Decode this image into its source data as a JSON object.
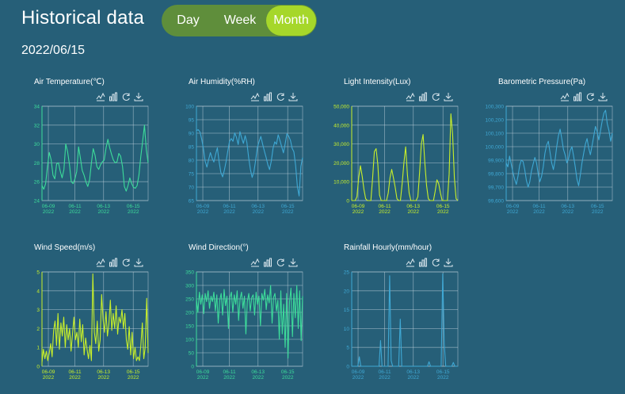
{
  "header": {
    "title": "Historical data",
    "date": "2022/06/15"
  },
  "range_toggle": {
    "options": [
      {
        "label": "Day",
        "active": false
      },
      {
        "label": "Week",
        "active": false
      },
      {
        "label": "Month",
        "active": true
      }
    ]
  },
  "colors": {
    "background": "#265f78",
    "green_line": "#3ddc9a",
    "yellow_line": "#c8ef2a",
    "blue_line": "#3fa8d4",
    "toggle_bg": "#5f8e3b",
    "toggle_active": "#a6d72a"
  },
  "toolbox_icons": [
    "line-chart-icon",
    "bar-chart-icon",
    "restore-icon",
    "download-icon"
  ],
  "chart_data": [
    {
      "id": "air-temperature",
      "type": "line",
      "title": "Air Temperature(℃)",
      "color": "#3ddc9a",
      "ylim": [
        24,
        34
      ],
      "yticks": [
        "24",
        "26",
        "28",
        "30",
        "32",
        "34"
      ],
      "xticks": [
        "06-09\n2022",
        "06-11\n2022",
        "06-13\n2022",
        "06-15\n2022"
      ],
      "y": [
        25.6,
        25.2,
        25.8,
        27.6,
        29.1,
        28.3,
        26.7,
        26.3,
        27.9,
        28.0,
        27.1,
        26.4,
        27.3,
        30.0,
        29.2,
        27.8,
        26.0,
        25.8,
        26.3,
        27.1,
        29.7,
        28.5,
        27.2,
        26.7,
        26.0,
        25.5,
        26.2,
        28.0,
        29.5,
        28.8,
        27.6,
        27.3,
        27.8,
        28.1,
        28.3,
        29.6,
        30.5,
        29.6,
        28.9,
        28.3,
        28.0,
        28.1,
        29.0,
        28.7,
        27.6,
        25.5,
        25.0,
        25.6,
        26.4,
        25.8,
        25.4,
        25.3,
        25.6,
        26.7,
        28.7,
        30.3,
        32.0,
        29.4,
        28.0
      ]
    },
    {
      "id": "air-humidity",
      "type": "line",
      "title": "Air Humidity(%RH)",
      "color": "#3fa8d4",
      "ylim": [
        65,
        100
      ],
      "yticks": [
        "65",
        "70",
        "75",
        "80",
        "85",
        "90",
        "95",
        "100"
      ],
      "xticks": [
        "06-09\n2022",
        "06-11\n2022",
        "06-13\n2022",
        "06-15\n2022"
      ],
      "y": [
        91.0,
        91.3,
        90.5,
        87.8,
        84.3,
        79.6,
        77.4,
        80.2,
        82.8,
        80.7,
        79.3,
        82.2,
        84.6,
        79.4,
        75.4,
        73.8,
        76.1,
        79.3,
        83.2,
        86.9,
        88.0,
        87.0,
        90.1,
        88.5,
        85.8,
        90.6,
        88.2,
        86.2,
        89.1,
        86.5,
        80.9,
        76.6,
        73.6,
        75.6,
        79.9,
        84.7,
        86.9,
        88.8,
        86.0,
        83.4,
        81.1,
        78.3,
        76.5,
        79.7,
        84.4,
        86.8,
        85.9,
        89.4,
        87.3,
        85.0,
        82.7,
        86.1,
        89.8,
        88.9,
        87.4,
        84.4,
        83.1,
        78.0,
        70.2,
        66.7,
        77.7,
        80.9
      ]
    },
    {
      "id": "light-intensity",
      "type": "line",
      "title": "Light Intensity(Lux)",
      "color": "#c8ef2a",
      "ylim": [
        0,
        50000
      ],
      "yticks": [
        "0",
        "10,000",
        "20,000",
        "30,000",
        "40,000",
        "50,000"
      ],
      "xticks": [
        "06-09\n2022",
        "06-11\n2022",
        "06-13\n2022",
        "06-15\n2022"
      ],
      "y": [
        0,
        0,
        0,
        2000,
        12000,
        18500,
        13000,
        6000,
        1000,
        0,
        0,
        0,
        12000,
        26000,
        27500,
        19000,
        3000,
        0,
        0,
        0,
        0,
        4000,
        12000,
        16500,
        12000,
        7000,
        1000,
        0,
        0,
        9000,
        20000,
        28500,
        14000,
        4000,
        0,
        0,
        0,
        0,
        2000,
        15000,
        30000,
        35000,
        20000,
        8000,
        1000,
        0,
        0,
        0,
        5000,
        11000,
        9000,
        4000,
        0,
        0,
        0,
        0,
        14000,
        46000,
        35000,
        12000,
        1000,
        0
      ]
    },
    {
      "id": "barometric-pressure",
      "type": "line",
      "title": "Barometric Pressure(Pa)",
      "color": "#3fa8d4",
      "ylim": [
        99600,
        100300
      ],
      "yticks": [
        "99,600",
        "99,700",
        "99,800",
        "99,900",
        "100,000",
        "100,100",
        "100,200",
        "100,300"
      ],
      "xticks": [
        "06-09\n2022",
        "06-11\n2022",
        "06-13\n2022",
        "06-15\n2022"
      ],
      "y": [
        99880,
        99850,
        99930,
        99870,
        99810,
        99760,
        99720,
        99780,
        99860,
        99900,
        99890,
        99830,
        99750,
        99700,
        99740,
        99820,
        99870,
        99920,
        99880,
        99800,
        99740,
        99780,
        99850,
        99950,
        100010,
        100040,
        99960,
        99880,
        99830,
        99900,
        100000,
        100080,
        100130,
        100060,
        99980,
        99940,
        99880,
        99910,
        99970,
        100000,
        99930,
        99850,
        99760,
        99710,
        99790,
        99880,
        99950,
        100020,
        100060,
        99990,
        99940,
        100010,
        100080,
        100150,
        100110,
        100050,
        100120,
        100190,
        100250,
        100270,
        100170,
        100120,
        100040,
        100100
      ]
    },
    {
      "id": "wind-speed",
      "type": "line",
      "title": "Wind Speed(m/s)",
      "color": "#c8ef2a",
      "ylim": [
        0,
        5
      ],
      "yticks": [
        "0",
        "1",
        "2",
        "3",
        "4",
        "5"
      ],
      "xticks": [
        "06-09\n2022",
        "06-11\n2022",
        "06-13\n2022",
        "06-15\n2022"
      ],
      "y": [
        0.2,
        0.9,
        0.4,
        0.8,
        0.3,
        0.7,
        1.2,
        0.5,
        1.9,
        2.4,
        1.1,
        2.8,
        0.9,
        2.3,
        1.6,
        2.6,
        1.0,
        2.2,
        1.4,
        2.0,
        0.8,
        1.7,
        2.6,
        1.4,
        1.8,
        1.0,
        2.5,
        1.3,
        2.2,
        0.6,
        1.5,
        0.9,
        0.4,
        1.1,
        0.3,
        4.9,
        1.8,
        1.2,
        2.4,
        0.8,
        1.4,
        3.8,
        2.5,
        1.8,
        2.9,
        1.6,
        2.2,
        3.5,
        1.9,
        2.8,
        2.0,
        3.2,
        1.7,
        2.6,
        2.3,
        3.0,
        2.0,
        2.8,
        1.4,
        0.9,
        2.1,
        0.6,
        1.8,
        0.4,
        1.0,
        0.3,
        0.5,
        0.3,
        1.1,
        2.3,
        0.4,
        1.0,
        3.6,
        0.7
      ]
    },
    {
      "id": "wind-direction",
      "type": "line",
      "title": "Wind Direction(°)",
      "color": "#3ddc9a",
      "ylim": [
        0,
        350
      ],
      "yticks": [
        "0",
        "50",
        "100",
        "150",
        "200",
        "250",
        "300",
        "350"
      ],
      "xticks": [
        "06-09\n2022",
        "06-11\n2022",
        "06-13\n2022",
        "06-15\n2022"
      ],
      "y": [
        250,
        200,
        275,
        230,
        265,
        195,
        270,
        240,
        280,
        215,
        260,
        240,
        275,
        205,
        265,
        160,
        245,
        270,
        190,
        285,
        225,
        260,
        140,
        255,
        275,
        200,
        265,
        230,
        280,
        170,
        250,
        275,
        215,
        260,
        120,
        240,
        270,
        205,
        255,
        265,
        190,
        275,
        230,
        260,
        150,
        270,
        245,
        285,
        210,
        265,
        235,
        300,
        160,
        255,
        270,
        205,
        245,
        100,
        280,
        120,
        230,
        70,
        270,
        30,
        240,
        290,
        110,
        270,
        180,
        300,
        140,
        280,
        95,
        260
      ]
    },
    {
      "id": "rainfall-hourly",
      "type": "line",
      "title": "Rainfall Hourly(mm/hour)",
      "color": "#3fa8d4",
      "ylim": [
        0,
        25
      ],
      "yticks": [
        "0",
        "5",
        "10",
        "15",
        "20",
        "25"
      ],
      "xticks": [
        "06-09\n2022",
        "06-11\n2022",
        "06-13\n2022",
        "06-15\n2022"
      ],
      "y": [
        0,
        0,
        0,
        0,
        0,
        2.5,
        0,
        0,
        0,
        0,
        0,
        0,
        0,
        0,
        0,
        0,
        0,
        0,
        0,
        6.8,
        0,
        0,
        0,
        0,
        0,
        24,
        1.5,
        0,
        0,
        0,
        0,
        0,
        12.5,
        0,
        0,
        0,
        0,
        0,
        0,
        0,
        0,
        0,
        0,
        0,
        0,
        0,
        0,
        0,
        0,
        0,
        0,
        1.2,
        0,
        0,
        0,
        0,
        0,
        0,
        0,
        0,
        24.5,
        6,
        0,
        0,
        0,
        0,
        0,
        1.0,
        0,
        0,
        0
      ]
    }
  ]
}
